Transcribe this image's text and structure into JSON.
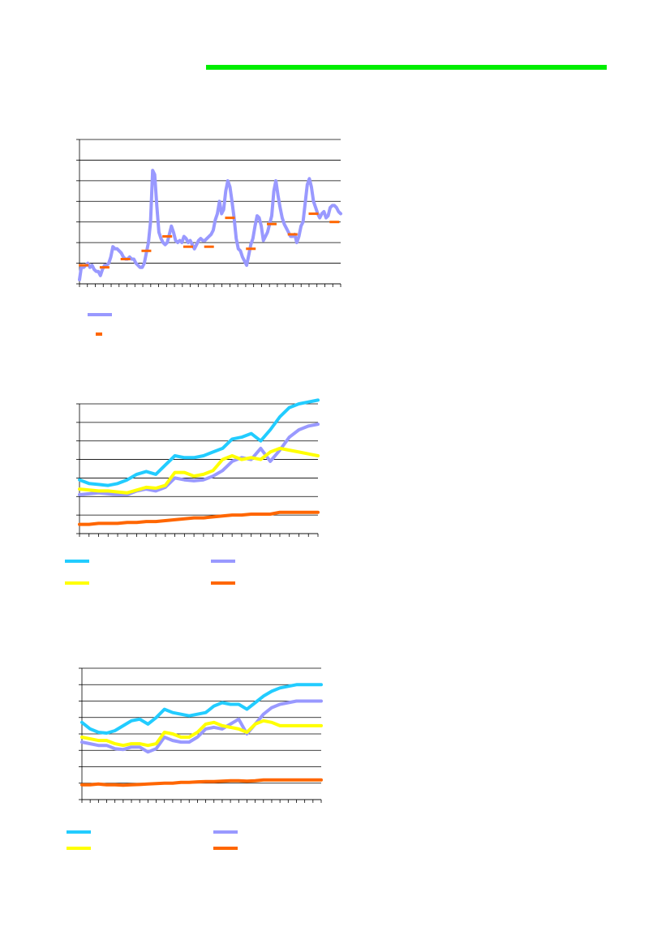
{
  "header": {
    "bar_color": "#00ee00"
  },
  "colors": {
    "lavender": "#9999ff",
    "orange": "#ff6600",
    "cyan": "#22ccff",
    "yellow": "#ffff00"
  },
  "chart_data": [
    {
      "type": "line",
      "title": "",
      "xlabel": "",
      "ylabel": "",
      "ylim": [
        0,
        7
      ],
      "grid": true,
      "legend": "bottom-left",
      "x_count": 126,
      "series": [
        {
          "style": "line",
          "color": "#9999ff",
          "values": [
            0.2,
            0.9,
            0.8,
            0.9,
            1.0,
            0.8,
            0.9,
            0.7,
            0.6,
            0.6,
            0.4,
            0.7,
            0.9,
            0.9,
            1.0,
            1.3,
            1.8,
            1.7,
            1.7,
            1.6,
            1.5,
            1.3,
            1.2,
            1.2,
            1.3,
            1.2,
            1.2,
            1.0,
            0.9,
            0.8,
            0.8,
            1.0,
            1.5,
            2.0,
            3.0,
            5.5,
            5.3,
            3.8,
            2.5,
            2.2,
            2.0,
            1.9,
            2.0,
            2.4,
            2.8,
            2.5,
            2.1,
            2.0,
            2.1,
            2.0,
            2.3,
            2.2,
            2.0,
            2.1,
            1.9,
            1.7,
            1.9,
            2.1,
            2.2,
            2.1,
            2.1,
            2.2,
            2.3,
            2.4,
            2.6,
            3.1,
            3.4,
            4.0,
            3.4,
            3.6,
            4.5,
            5.0,
            4.7,
            4.0,
            3.2,
            2.2,
            1.7,
            1.6,
            1.3,
            1.1,
            0.9,
            1.4,
            1.9,
            2.2,
            2.8,
            3.3,
            3.2,
            2.8,
            2.1,
            2.3,
            2.5,
            2.9,
            3.3,
            4.5,
            5.0,
            4.3,
            3.7,
            3.2,
            2.9,
            2.7,
            2.5,
            2.3,
            2.3,
            2.4,
            2.0,
            2.3,
            2.8,
            3.0,
            3.9,
            4.8,
            5.1,
            4.7,
            4.0,
            3.7,
            3.4,
            3.2,
            3.4,
            3.5,
            3.2,
            3.3,
            3.7,
            3.8,
            3.8,
            3.7,
            3.5,
            3.4
          ]
        },
        {
          "style": "markers",
          "color": "#ff6600",
          "points": [
            [
              2,
              0.9
            ],
            [
              12,
              0.8
            ],
            [
              22,
              1.2
            ],
            [
              32,
              1.6
            ],
            [
              42,
              2.3
            ],
            [
              52,
              1.8
            ],
            [
              62,
              1.8
            ],
            [
              72,
              3.2
            ],
            [
              82,
              1.7
            ],
            [
              92,
              2.9
            ],
            [
              102,
              2.4
            ],
            [
              112,
              3.4
            ],
            [
              122,
              3.0
            ]
          ]
        }
      ]
    },
    {
      "type": "line",
      "title": "",
      "xlabel": "",
      "ylabel": "",
      "ylim": [
        0,
        7
      ],
      "grid": true,
      "legend": "bottom",
      "x": [
        0,
        1,
        2,
        3,
        4,
        5,
        6,
        7,
        8,
        9,
        10,
        11,
        12,
        13,
        14,
        15,
        16,
        17,
        18,
        19,
        20,
        21,
        22,
        23,
        24,
        25
      ],
      "series": [
        {
          "color": "#22ccff",
          "values": [
            2.9,
            2.7,
            2.65,
            2.6,
            2.7,
            2.9,
            3.2,
            3.35,
            3.2,
            3.7,
            4.2,
            4.1,
            4.1,
            4.2,
            4.4,
            4.6,
            5.1,
            5.2,
            5.4,
            5.0,
            5.6,
            6.3,
            6.8,
            7.0,
            7.1,
            7.2
          ]
        },
        {
          "color": "#9999ff",
          "values": [
            2.1,
            2.15,
            2.2,
            2.15,
            2.1,
            2.1,
            2.3,
            2.4,
            2.3,
            2.5,
            3.0,
            2.9,
            2.85,
            2.9,
            3.1,
            3.4,
            3.9,
            4.1,
            4.0,
            4.6,
            3.9,
            4.5,
            5.2,
            5.6,
            5.8,
            5.9
          ]
        },
        {
          "color": "#ffff00",
          "values": [
            2.4,
            2.35,
            2.3,
            2.3,
            2.25,
            2.2,
            2.35,
            2.5,
            2.45,
            2.6,
            3.3,
            3.3,
            3.1,
            3.2,
            3.4,
            4.0,
            4.2,
            4.0,
            4.1,
            4.0,
            4.4,
            4.6,
            4.5,
            4.4,
            4.3,
            4.2
          ]
        },
        {
          "color": "#ff6600",
          "values": [
            0.5,
            0.5,
            0.55,
            0.55,
            0.55,
            0.6,
            0.6,
            0.65,
            0.65,
            0.7,
            0.75,
            0.8,
            0.85,
            0.85,
            0.9,
            0.95,
            1.0,
            1.0,
            1.05,
            1.05,
            1.05,
            1.15,
            1.15,
            1.15,
            1.15,
            1.15
          ]
        }
      ]
    },
    {
      "type": "line",
      "title": "",
      "xlabel": "",
      "ylabel": "",
      "ylim": [
        0,
        8
      ],
      "grid": true,
      "legend": "bottom",
      "x": [
        0,
        1,
        2,
        3,
        4,
        5,
        6,
        7,
        8,
        9,
        10,
        11,
        12,
        13,
        14,
        15,
        16,
        17,
        18,
        19,
        20,
        21,
        22,
        23,
        24,
        25,
        26,
        27,
        28,
        29
      ],
      "series": [
        {
          "color": "#22ccff",
          "values": [
            4.7,
            4.3,
            4.1,
            4.05,
            4.2,
            4.5,
            4.8,
            4.9,
            4.6,
            5.0,
            5.5,
            5.3,
            5.2,
            5.1,
            5.2,
            5.3,
            5.7,
            5.9,
            5.8,
            5.8,
            5.5,
            5.9,
            6.3,
            6.6,
            6.8,
            6.9,
            7.0,
            7.0,
            7.0,
            7.0
          ]
        },
        {
          "color": "#9999ff",
          "values": [
            3.5,
            3.4,
            3.3,
            3.3,
            3.1,
            3.05,
            3.2,
            3.2,
            2.9,
            3.1,
            3.8,
            3.6,
            3.5,
            3.5,
            3.8,
            4.3,
            4.4,
            4.3,
            4.6,
            4.9,
            4.0,
            4.6,
            5.2,
            5.6,
            5.8,
            5.9,
            6.0,
            6.0,
            6.0,
            6.0
          ]
        },
        {
          "color": "#ffff00",
          "values": [
            3.8,
            3.7,
            3.6,
            3.6,
            3.4,
            3.3,
            3.4,
            3.4,
            3.3,
            3.4,
            4.1,
            4.0,
            3.8,
            3.8,
            4.1,
            4.6,
            4.7,
            4.5,
            4.4,
            4.3,
            4.1,
            4.6,
            4.8,
            4.7,
            4.5,
            4.5,
            4.5,
            4.5,
            4.5,
            4.5
          ]
        },
        {
          "color": "#ff6600",
          "values": [
            0.9,
            0.9,
            0.95,
            0.9,
            0.9,
            0.88,
            0.9,
            0.92,
            0.95,
            0.98,
            1.0,
            1.0,
            1.05,
            1.05,
            1.08,
            1.1,
            1.1,
            1.12,
            1.15,
            1.15,
            1.12,
            1.15,
            1.2,
            1.2,
            1.2,
            1.2,
            1.2,
            1.2,
            1.2,
            1.2
          ]
        }
      ]
    }
  ]
}
